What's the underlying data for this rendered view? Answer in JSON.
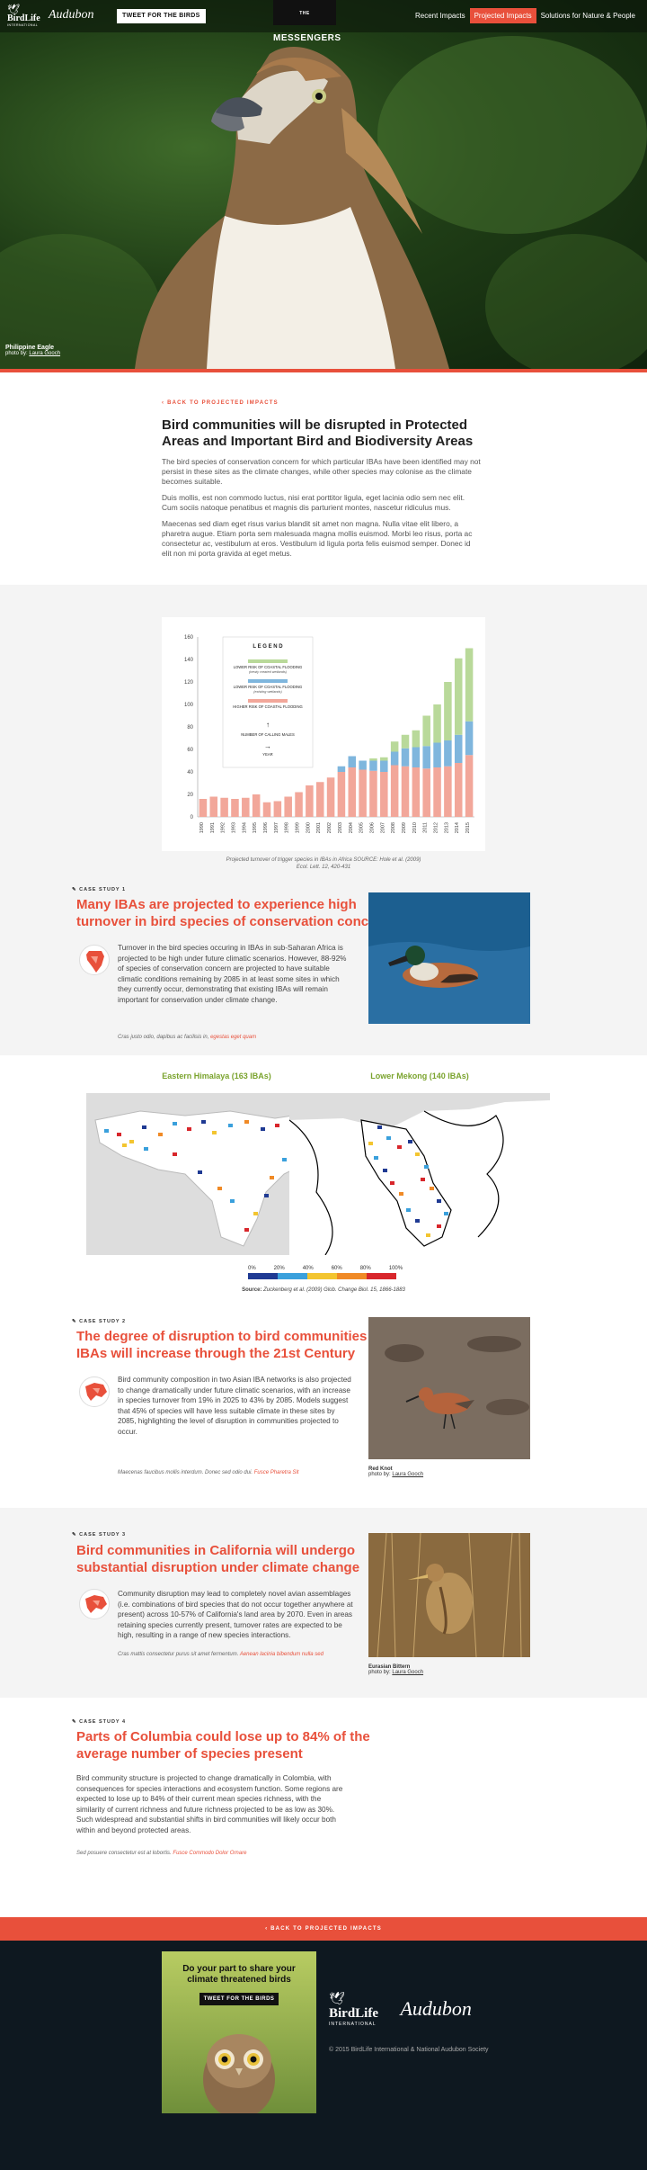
{
  "header": {
    "logo_birdlife": "BirdLife",
    "logo_birdlife_sub": "INTERNATIONAL",
    "logo_audubon": "Audubon",
    "tweet_button": "TWEET FOR THE BIRDS",
    "brand_small": "THE",
    "brand": "MESSENGERS",
    "nav": [
      "Recent Impacts",
      "Projected Impacts",
      "Solutions for Nature & People"
    ]
  },
  "hero": {
    "caption_title": "Philippine Eagle",
    "caption_by": "photo by:",
    "caption_author": "Laura Gooch"
  },
  "intro": {
    "back_link": "BACK TO PROJECTED IMPACTS",
    "title": "Bird communities will be disrupted in Protected Areas and Important Bird and Biodiversity Areas",
    "paragraphs": [
      "The bird species of conservation concern for which particular IBAs have been identified may not persist in these sites as the climate changes, while other species may colonise as the climate becomes suitable.",
      "Duis mollis, est non commodo luctus, nisi erat porttitor ligula, eget lacinia odio sem nec elit. Cum sociis natoque penatibus et magnis dis parturient montes, nascetur ridiculus mus.",
      "Maecenas sed diam eget risus varius blandit sit amet non magna. Nulla vitae elit libero, a pharetra augue. Etiam porta sem malesuada magna mollis euismod. Morbi leo risus, porta ac consectetur ac, vestibulum at eros. Vestibulum id ligula porta felis euismod semper. Donec id elit non mi porta gravida at eget metus."
    ]
  },
  "chart_data": {
    "type": "bar",
    "legend_title": "L E G E N D",
    "legend": [
      {
        "label": "LOWER RISK OF COASTAL FLOODING",
        "sub": "(newly created wetlands)",
        "color": "#b9d99a"
      },
      {
        "label": "LOWER RISK OF COASTAL FLOODING",
        "sub": "(existing wetlands)",
        "color": "#7fb6dd"
      },
      {
        "label": "HIGHER RISK OF COASTAL FLOODING",
        "sub": "",
        "color": "#f2a79a"
      }
    ],
    "legend_y_label": "NUMBER OF CALLING MALES",
    "legend_x_label": "YEAR",
    "categories": [
      "1990",
      "1991",
      "1992",
      "1993",
      "1994",
      "1995",
      "1996",
      "1997",
      "1998",
      "1999",
      "2000",
      "2001",
      "2002",
      "2003",
      "2004",
      "2005",
      "2006",
      "2007",
      "2008",
      "2009",
      "2010",
      "2011",
      "2012",
      "2013",
      "2014",
      "2015"
    ],
    "series": [
      {
        "values": [
          16,
          18,
          17,
          16,
          17,
          20,
          13,
          14,
          18,
          22,
          28,
          31,
          35,
          40,
          44,
          42,
          41,
          40,
          46,
          45,
          44,
          43,
          44,
          45,
          48,
          55
        ]
      },
      {
        "values": [
          0,
          0,
          0,
          0,
          0,
          0,
          0,
          0,
          0,
          0,
          0,
          0,
          0,
          5,
          10,
          8,
          9,
          10,
          12,
          16,
          18,
          20,
          22,
          23,
          25,
          30
        ]
      },
      {
        "values": [
          0,
          0,
          0,
          0,
          0,
          0,
          0,
          0,
          0,
          0,
          0,
          0,
          0,
          0,
          0,
          0,
          2,
          3,
          9,
          12,
          15,
          27,
          34,
          52,
          68,
          65
        ]
      }
    ],
    "ylim": [
      0,
      160
    ],
    "yticks": [
      0,
      20,
      40,
      60,
      80,
      100,
      120,
      140,
      160
    ],
    "caption_line1": "Projected turnover of trigger species in IBAs in Africa SOURCE: Hole et al. (2009)",
    "caption_line2": "Ecol. Lett. 12, 420-431"
  },
  "case1": {
    "tag": "CASE STUDY 1",
    "title_l1": "Many IBAs are projected to experience high",
    "title_l2": "turnover in bird species of conservation concern",
    "body": "Turnover in the bird species occuring in IBAs in sub-Saharan Africa is projected to be high under future climatic scenarios. However, 88-92% of species of conservation concern are projected to have suitable climatic conditions remaining by 2085 in at least some sites in which they currently occur, demonstrating that existing IBAs will remain important for conservation under climate change.",
    "note": "Cras justo odio, dapibus ac facilisis in,",
    "note_link": "egestas eget quam"
  },
  "maps": {
    "left_title": "Eastern Himalaya (163 IBAs)",
    "right_title": "Lower Mekong (140 IBAs)",
    "scale": [
      "0%",
      "20%",
      "40%",
      "60%",
      "80%",
      "100%"
    ],
    "scale_colors": [
      "#1f3a93",
      "#3aa0dc",
      "#f3c530",
      "#f08a26",
      "#d8262b"
    ],
    "source_label": "Source:",
    "source_text": "Zuckenberg et al. (2009) Glob. Change Biol. 15, 1866-1883"
  },
  "case2": {
    "tag": "CASE STUDY 2",
    "title_l1": "The degree of disruption to bird communities in",
    "title_l2": "IBAs will increase through the 21st Century",
    "body": "Bird community composition in two Asian IBA networks is also projected to change dramatically under future climatic scenarios, with an increase in species turnover from 19% in 2025 to 43% by 2085. Models suggest that 45% of species will have less suitable climate in these sites by 2085, highlighting the level of disruption in communities projected to occur.",
    "note": "Maecenas faucibus mollis interdum. Donec sed odio dui.",
    "note_link": "Fusce Pharetra Sit",
    "photo_title": "Red Knot",
    "photo_by": "photo by:",
    "photo_author": "Laura Gooch"
  },
  "case3": {
    "tag": "CASE STUDY 3",
    "title_l1": "Bird communities in California will undergo",
    "title_l2": "substantial disruption under climate change",
    "body": "Community disruption may lead to completely novel avian assemblages (i.e. combinations of bird species that do not occur together anywhere at present) across 10-57% of California's land area by 2070. Even in areas retaining species currently present, turnover rates are expected to be high, resulting in a range of new species interactions.",
    "note": "Cras mattis consectetur purus sit amet fermentum.",
    "note_link": "Aenean lacinia bibendum nulla sed",
    "photo_title": "Eurasian Bittern",
    "photo_by": "photo by:",
    "photo_author": "Laura Gooch"
  },
  "case4": {
    "tag": "CASE STUDY 4",
    "title_l1": "Parts of Columbia could lose up to 84% of the",
    "title_l2": "average number of species present",
    "body": "Bird community structure is projected to change dramatically in Colombia, with consequences for species interactions and ecosystem function. Some regions are expected to lose up to 84% of their current mean species richness, with the similarity of current richness and future richness projected to be as low as 30%. Such widespread and substantial shifts in bird communities will likely occur both within and beyond protected areas.",
    "note": "Sed posuere consectetur est at lobortis.",
    "note_link": "Fusce Commodo Dolor Ornare"
  },
  "footer": {
    "back_link": "BACK TO PROJECTED IMPACTS",
    "card_heading_l1": "Do your part to share your",
    "card_heading_l2": "climate threatened birds",
    "card_button": "TWEET FOR THE BIRDS",
    "logo_birdlife": "BirdLife",
    "logo_birdlife_sub": "INTERNATIONAL",
    "logo_audubon": "Audubon",
    "copyright": "© 2015 BirdLife International & National Audubon Society"
  }
}
